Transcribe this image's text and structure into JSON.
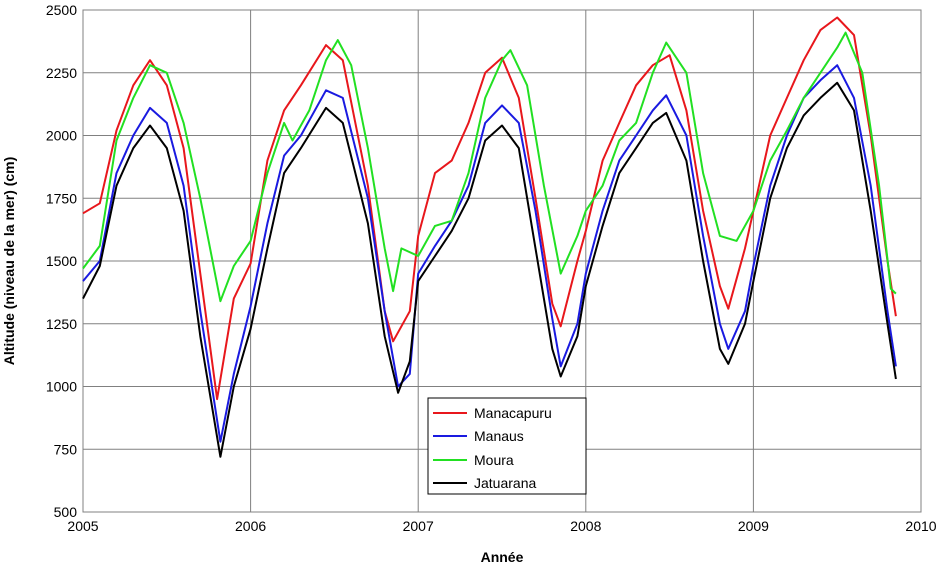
{
  "chart_data": {
    "type": "line",
    "xlabel": "Année",
    "ylabel": "Altitude (niveau de la mer) (cm)",
    "xlim": [
      2005,
      2010
    ],
    "ylim": [
      500,
      2500
    ],
    "x_ticks": [
      "2005",
      "2006",
      "2007",
      "2008",
      "2009",
      "2010"
    ],
    "y_ticks": [
      "500",
      "750",
      "1000",
      "1250",
      "1500",
      "1750",
      "2000",
      "2250",
      "2500"
    ],
    "grid": true,
    "legend_position": "bottom-center",
    "series": [
      {
        "name": "Manacapuru",
        "color": "#e8171c",
        "points": [
          [
            2005.0,
            1690
          ],
          [
            2005.1,
            1730
          ],
          [
            2005.2,
            2020
          ],
          [
            2005.3,
            2200
          ],
          [
            2005.4,
            2300
          ],
          [
            2005.5,
            2200
          ],
          [
            2005.6,
            1950
          ],
          [
            2005.7,
            1450
          ],
          [
            2005.8,
            950
          ],
          [
            2005.9,
            1350
          ],
          [
            2006.0,
            1490
          ],
          [
            2006.1,
            1900
          ],
          [
            2006.2,
            2100
          ],
          [
            2006.3,
            2200
          ],
          [
            2006.45,
            2360
          ],
          [
            2006.55,
            2300
          ],
          [
            2006.7,
            1800
          ],
          [
            2006.8,
            1300
          ],
          [
            2006.85,
            1180
          ],
          [
            2006.95,
            1300
          ],
          [
            2007.0,
            1600
          ],
          [
            2007.1,
            1850
          ],
          [
            2007.2,
            1900
          ],
          [
            2007.3,
            2050
          ],
          [
            2007.4,
            2250
          ],
          [
            2007.5,
            2310
          ],
          [
            2007.6,
            2150
          ],
          [
            2007.7,
            1750
          ],
          [
            2007.8,
            1330
          ],
          [
            2007.85,
            1240
          ],
          [
            2007.95,
            1500
          ],
          [
            2008.0,
            1620
          ],
          [
            2008.1,
            1900
          ],
          [
            2008.2,
            2050
          ],
          [
            2008.3,
            2200
          ],
          [
            2008.4,
            2280
          ],
          [
            2008.5,
            2320
          ],
          [
            2008.6,
            2100
          ],
          [
            2008.7,
            1700
          ],
          [
            2008.8,
            1400
          ],
          [
            2008.85,
            1310
          ],
          [
            2008.95,
            1550
          ],
          [
            2009.0,
            1700
          ],
          [
            2009.1,
            2000
          ],
          [
            2009.2,
            2150
          ],
          [
            2009.3,
            2300
          ],
          [
            2009.4,
            2420
          ],
          [
            2009.5,
            2470
          ],
          [
            2009.6,
            2400
          ],
          [
            2009.7,
            2000
          ],
          [
            2009.8,
            1500
          ],
          [
            2009.85,
            1280
          ]
        ]
      },
      {
        "name": "Manaus",
        "color": "#1a1ae0",
        "points": [
          [
            2005.0,
            1420
          ],
          [
            2005.1,
            1500
          ],
          [
            2005.2,
            1850
          ],
          [
            2005.3,
            2000
          ],
          [
            2005.4,
            2110
          ],
          [
            2005.5,
            2050
          ],
          [
            2005.6,
            1800
          ],
          [
            2005.7,
            1300
          ],
          [
            2005.82,
            780
          ],
          [
            2005.9,
            1050
          ],
          [
            2006.0,
            1320
          ],
          [
            2006.1,
            1650
          ],
          [
            2006.2,
            1920
          ],
          [
            2006.3,
            2000
          ],
          [
            2006.45,
            2180
          ],
          [
            2006.55,
            2150
          ],
          [
            2006.7,
            1750
          ],
          [
            2006.8,
            1300
          ],
          [
            2006.88,
            1000
          ],
          [
            2006.95,
            1050
          ],
          [
            2007.0,
            1450
          ],
          [
            2007.1,
            1560
          ],
          [
            2007.2,
            1660
          ],
          [
            2007.3,
            1800
          ],
          [
            2007.4,
            2050
          ],
          [
            2007.5,
            2120
          ],
          [
            2007.6,
            2050
          ],
          [
            2007.7,
            1700
          ],
          [
            2007.8,
            1270
          ],
          [
            2007.85,
            1080
          ],
          [
            2007.95,
            1250
          ],
          [
            2008.0,
            1450
          ],
          [
            2008.1,
            1700
          ],
          [
            2008.2,
            1900
          ],
          [
            2008.3,
            2000
          ],
          [
            2008.4,
            2100
          ],
          [
            2008.48,
            2160
          ],
          [
            2008.6,
            2000
          ],
          [
            2008.7,
            1600
          ],
          [
            2008.8,
            1250
          ],
          [
            2008.85,
            1150
          ],
          [
            2008.95,
            1300
          ],
          [
            2009.0,
            1480
          ],
          [
            2009.1,
            1800
          ],
          [
            2009.2,
            2000
          ],
          [
            2009.3,
            2150
          ],
          [
            2009.4,
            2220
          ],
          [
            2009.5,
            2280
          ],
          [
            2009.6,
            2150
          ],
          [
            2009.7,
            1800
          ],
          [
            2009.8,
            1300
          ],
          [
            2009.85,
            1080
          ]
        ]
      },
      {
        "name": "Moura",
        "color": "#22e022",
        "points": [
          [
            2005.0,
            1470
          ],
          [
            2005.1,
            1560
          ],
          [
            2005.2,
            1980
          ],
          [
            2005.3,
            2150
          ],
          [
            2005.4,
            2280
          ],
          [
            2005.5,
            2250
          ],
          [
            2005.6,
            2050
          ],
          [
            2005.7,
            1750
          ],
          [
            2005.82,
            1340
          ],
          [
            2005.9,
            1480
          ],
          [
            2006.0,
            1580
          ],
          [
            2006.1,
            1850
          ],
          [
            2006.2,
            2050
          ],
          [
            2006.25,
            1980
          ],
          [
            2006.35,
            2100
          ],
          [
            2006.45,
            2300
          ],
          [
            2006.52,
            2380
          ],
          [
            2006.6,
            2280
          ],
          [
            2006.7,
            1950
          ],
          [
            2006.8,
            1550
          ],
          [
            2006.85,
            1380
          ],
          [
            2006.9,
            1550
          ],
          [
            2007.0,
            1520
          ],
          [
            2007.1,
            1640
          ],
          [
            2007.2,
            1660
          ],
          [
            2007.3,
            1850
          ],
          [
            2007.4,
            2150
          ],
          [
            2007.5,
            2300
          ],
          [
            2007.55,
            2340
          ],
          [
            2007.65,
            2200
          ],
          [
            2007.75,
            1800
          ],
          [
            2007.85,
            1450
          ],
          [
            2007.95,
            1600
          ],
          [
            2008.0,
            1700
          ],
          [
            2008.1,
            1800
          ],
          [
            2008.2,
            1980
          ],
          [
            2008.3,
            2050
          ],
          [
            2008.4,
            2250
          ],
          [
            2008.48,
            2370
          ],
          [
            2008.6,
            2250
          ],
          [
            2008.7,
            1850
          ],
          [
            2008.8,
            1600
          ],
          [
            2008.9,
            1580
          ],
          [
            2009.0,
            1700
          ],
          [
            2009.1,
            1900
          ],
          [
            2009.2,
            2020
          ],
          [
            2009.3,
            2150
          ],
          [
            2009.4,
            2250
          ],
          [
            2009.5,
            2350
          ],
          [
            2009.55,
            2410
          ],
          [
            2009.65,
            2250
          ],
          [
            2009.75,
            1800
          ],
          [
            2009.82,
            1390
          ],
          [
            2009.85,
            1370
          ]
        ]
      },
      {
        "name": "Jatuarana",
        "color": "#000000",
        "points": [
          [
            2005.0,
            1350
          ],
          [
            2005.1,
            1480
          ],
          [
            2005.2,
            1800
          ],
          [
            2005.3,
            1950
          ],
          [
            2005.4,
            2040
          ],
          [
            2005.5,
            1950
          ],
          [
            2005.6,
            1700
          ],
          [
            2005.7,
            1200
          ],
          [
            2005.82,
            720
          ],
          [
            2005.9,
            1000
          ],
          [
            2006.0,
            1230
          ],
          [
            2006.1,
            1550
          ],
          [
            2006.2,
            1850
          ],
          [
            2006.3,
            1950
          ],
          [
            2006.45,
            2110
          ],
          [
            2006.55,
            2050
          ],
          [
            2006.7,
            1650
          ],
          [
            2006.8,
            1200
          ],
          [
            2006.88,
            975
          ],
          [
            2006.95,
            1100
          ],
          [
            2007.0,
            1420
          ],
          [
            2007.1,
            1520
          ],
          [
            2007.2,
            1620
          ],
          [
            2007.3,
            1750
          ],
          [
            2007.4,
            1980
          ],
          [
            2007.5,
            2040
          ],
          [
            2007.6,
            1950
          ],
          [
            2007.7,
            1550
          ],
          [
            2007.8,
            1150
          ],
          [
            2007.85,
            1040
          ],
          [
            2007.95,
            1200
          ],
          [
            2008.0,
            1400
          ],
          [
            2008.1,
            1640
          ],
          [
            2008.2,
            1850
          ],
          [
            2008.3,
            1950
          ],
          [
            2008.4,
            2050
          ],
          [
            2008.48,
            2090
          ],
          [
            2008.6,
            1900
          ],
          [
            2008.7,
            1500
          ],
          [
            2008.8,
            1150
          ],
          [
            2008.85,
            1090
          ],
          [
            2008.95,
            1250
          ],
          [
            2009.0,
            1420
          ],
          [
            2009.1,
            1750
          ],
          [
            2009.2,
            1950
          ],
          [
            2009.3,
            2080
          ],
          [
            2009.4,
            2150
          ],
          [
            2009.5,
            2210
          ],
          [
            2009.6,
            2100
          ],
          [
            2009.7,
            1700
          ],
          [
            2009.8,
            1250
          ],
          [
            2009.85,
            1030
          ]
        ]
      }
    ]
  }
}
